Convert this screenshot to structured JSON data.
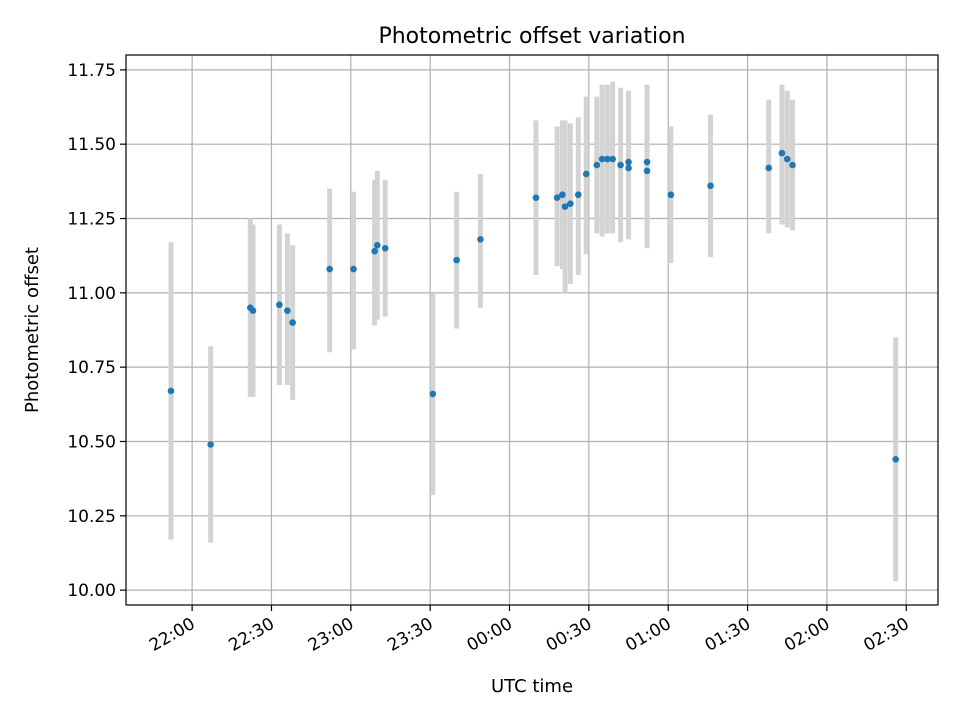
{
  "chart_data": {
    "type": "scatter",
    "title": "Photometric offset variation",
    "xlabel": "UTC time",
    "ylabel": "Photometric offset",
    "xlim": [
      "21:35",
      "02:42"
    ],
    "ylim": [
      9.95,
      11.8
    ],
    "x_ticks": [
      "22:00",
      "22:30",
      "23:00",
      "23:30",
      "00:00",
      "00:30",
      "01:00",
      "01:30",
      "02:00",
      "02:30"
    ],
    "y_ticks": [
      "10.00",
      "10.25",
      "10.50",
      "10.75",
      "11.00",
      "11.25",
      "11.50",
      "11.75"
    ],
    "grid": true,
    "colors": {
      "point": "#1f77b4",
      "errorbar": "#d3d3d3",
      "grid": "#b0b0b0"
    },
    "series": [
      {
        "points": [
          {
            "x": "21:52",
            "y": 10.67,
            "lo": 10.17,
            "hi": 11.17
          },
          {
            "x": "22:07",
            "y": 10.49,
            "lo": 10.16,
            "hi": 10.82
          },
          {
            "x": "22:22",
            "y": 10.95,
            "lo": 10.65,
            "hi": 11.25
          },
          {
            "x": "22:23",
            "y": 10.94,
            "lo": 10.65,
            "hi": 11.23
          },
          {
            "x": "22:33",
            "y": 10.96,
            "lo": 10.69,
            "hi": 11.23
          },
          {
            "x": "22:36",
            "y": 10.94,
            "lo": 10.69,
            "hi": 11.2
          },
          {
            "x": "22:38",
            "y": 10.9,
            "lo": 10.64,
            "hi": 11.16
          },
          {
            "x": "22:52",
            "y": 11.08,
            "lo": 10.8,
            "hi": 11.35
          },
          {
            "x": "23:01",
            "y": 11.08,
            "lo": 10.81,
            "hi": 11.34
          },
          {
            "x": "23:09",
            "y": 11.14,
            "lo": 10.89,
            "hi": 11.38
          },
          {
            "x": "23:10",
            "y": 11.16,
            "lo": 10.91,
            "hi": 11.41
          },
          {
            "x": "23:13",
            "y": 11.15,
            "lo": 10.92,
            "hi": 11.38
          },
          {
            "x": "23:31",
            "y": 10.66,
            "lo": 10.32,
            "hi": 11.0
          },
          {
            "x": "23:40",
            "y": 11.11,
            "lo": 10.88,
            "hi": 11.34
          },
          {
            "x": "23:49",
            "y": 11.18,
            "lo": 10.95,
            "hi": 11.4
          },
          {
            "x": "00:10",
            "y": 11.32,
            "lo": 11.06,
            "hi": 11.58
          },
          {
            "x": "00:18",
            "y": 11.32,
            "lo": 11.09,
            "hi": 11.56
          },
          {
            "x": "00:20",
            "y": 11.33,
            "lo": 11.08,
            "hi": 11.58
          },
          {
            "x": "00:21",
            "y": 11.29,
            "lo": 11.0,
            "hi": 11.58
          },
          {
            "x": "00:23",
            "y": 11.3,
            "lo": 11.03,
            "hi": 11.57
          },
          {
            "x": "00:26",
            "y": 11.33,
            "lo": 11.06,
            "hi": 11.59
          },
          {
            "x": "00:29",
            "y": 11.4,
            "lo": 11.13,
            "hi": 11.66
          },
          {
            "x": "00:33",
            "y": 11.43,
            "lo": 11.2,
            "hi": 11.66
          },
          {
            "x": "00:35",
            "y": 11.45,
            "lo": 11.19,
            "hi": 11.7
          },
          {
            "x": "00:37",
            "y": 11.45,
            "lo": 11.2,
            "hi": 11.7
          },
          {
            "x": "00:39",
            "y": 11.45,
            "lo": 11.2,
            "hi": 11.71
          },
          {
            "x": "00:42",
            "y": 11.43,
            "lo": 11.17,
            "hi": 11.69
          },
          {
            "x": "00:45",
            "y": 11.44,
            "lo": 11.19,
            "hi": 11.68
          },
          {
            "x": "00:45",
            "y": 11.42,
            "lo": 11.18,
            "hi": 11.66
          },
          {
            "x": "00:52",
            "y": 11.44,
            "lo": 11.17,
            "hi": 11.7
          },
          {
            "x": "00:52",
            "y": 11.41,
            "lo": 11.15,
            "hi": 11.67
          },
          {
            "x": "01:01",
            "y": 11.33,
            "lo": 11.1,
            "hi": 11.56
          },
          {
            "x": "01:16",
            "y": 11.36,
            "lo": 11.12,
            "hi": 11.6
          },
          {
            "x": "01:38",
            "y": 11.42,
            "lo": 11.2,
            "hi": 11.65
          },
          {
            "x": "01:43",
            "y": 11.47,
            "lo": 11.23,
            "hi": 11.7
          },
          {
            "x": "01:45",
            "y": 11.45,
            "lo": 11.22,
            "hi": 11.68
          },
          {
            "x": "01:47",
            "y": 11.43,
            "lo": 11.21,
            "hi": 11.65
          },
          {
            "x": "02:26",
            "y": 10.44,
            "lo": 10.03,
            "hi": 10.85
          }
        ]
      }
    ]
  }
}
